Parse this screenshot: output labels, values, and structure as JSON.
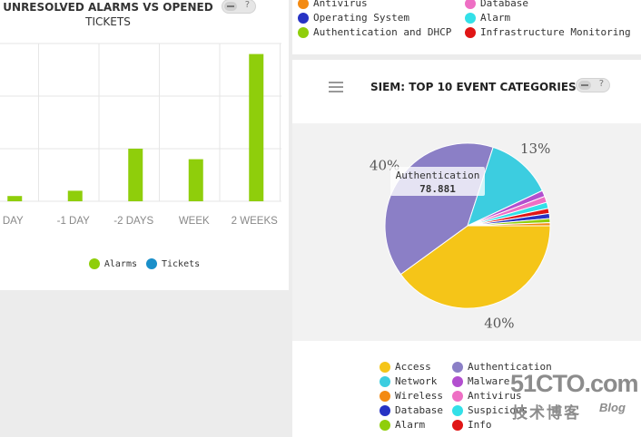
{
  "left_panel": {
    "title_line1": "UNRESOLVED ALARMS VS OPENED",
    "title_line2": "TICKETS",
    "toggle_label": "?",
    "legend": [
      {
        "label": "Alarms",
        "color": "#8fce0b"
      },
      {
        "label": "Tickets",
        "color": "#1a8fc9"
      }
    ]
  },
  "chart_data": [
    {
      "type": "bar",
      "title": "UNRESOLVED ALARMS VS OPENED TICKETS",
      "categories": [
        "DAY",
        "-1 DAY",
        "-2 DAYS",
        "WEEK",
        "2 WEEKS"
      ],
      "series": [
        {
          "name": "Alarms",
          "color": "#8fce0b",
          "values": [
            1,
            2,
            10,
            8,
            28
          ]
        },
        {
          "name": "Tickets",
          "color": "#1a8fc9",
          "values": [
            0,
            0,
            0,
            0,
            0
          ]
        }
      ],
      "ylim": [
        0,
        30
      ]
    },
    {
      "type": "pie",
      "title": "SIEM: TOP 10 EVENT CATEGORIES",
      "slices": [
        {
          "label": "Access",
          "percent": 40,
          "color": "#f5c518",
          "pct_label": "40%"
        },
        {
          "label": "Authentication",
          "percent": 40,
          "color": "#8b7fc6",
          "pct_label": "40%"
        },
        {
          "label": "Network",
          "percent": 13,
          "color": "#3ccde0",
          "pct_label": "13%"
        },
        {
          "label": "Malware",
          "percent": 1.2,
          "color": "#b24fcf"
        },
        {
          "label": "Antivirus",
          "percent": 1.2,
          "color": "#ee6fc4"
        },
        {
          "label": "Suspicious",
          "percent": 1.2,
          "color": "#33e0e8"
        },
        {
          "label": "Info",
          "percent": 1,
          "color": "#e01515"
        },
        {
          "label": "Database",
          "percent": 1,
          "color": "#2733c4"
        },
        {
          "label": "Alarm",
          "percent": 0.8,
          "color": "#8fce0b"
        },
        {
          "label": "Wireless",
          "percent": 0.6,
          "color": "#f38a12"
        }
      ],
      "tooltip": {
        "label": "Authentication",
        "value": "78.881"
      }
    }
  ],
  "top_legend": [
    {
      "label": "Antivirus",
      "color": "#f38a12"
    },
    {
      "label": "Database",
      "color": "#ee6fc4"
    },
    {
      "label": "Operating System",
      "color": "#2733c4"
    },
    {
      "label": "Alarm",
      "color": "#33e0e8"
    },
    {
      "label": "Authentication and DHCP",
      "color": "#8fce0b"
    },
    {
      "label": "Infrastructure Monitoring",
      "color": "#e01515"
    }
  ],
  "pie_panel": {
    "title": "SIEM: TOP 10 EVENT CATEGORIES",
    "toggle_label": "?",
    "legend": [
      {
        "label": "Access",
        "color": "#f5c518"
      },
      {
        "label": "Authentication",
        "color": "#8b7fc6"
      },
      {
        "label": "Network",
        "color": "#3ccde0"
      },
      {
        "label": "Malware",
        "color": "#b24fcf"
      },
      {
        "label": "Wireless",
        "color": "#f38a12"
      },
      {
        "label": "Antivirus",
        "color": "#ee6fc4"
      },
      {
        "label": "Database",
        "color": "#2733c4"
      },
      {
        "label": "Suspicious",
        "color": "#33e0e8"
      },
      {
        "label": "Alarm",
        "color": "#8fce0b"
      },
      {
        "label": "Info",
        "color": "#e01515"
      }
    ]
  },
  "watermark": {
    "main": "51CTO.com",
    "sub": "技术博客",
    "blog": "Blog"
  }
}
